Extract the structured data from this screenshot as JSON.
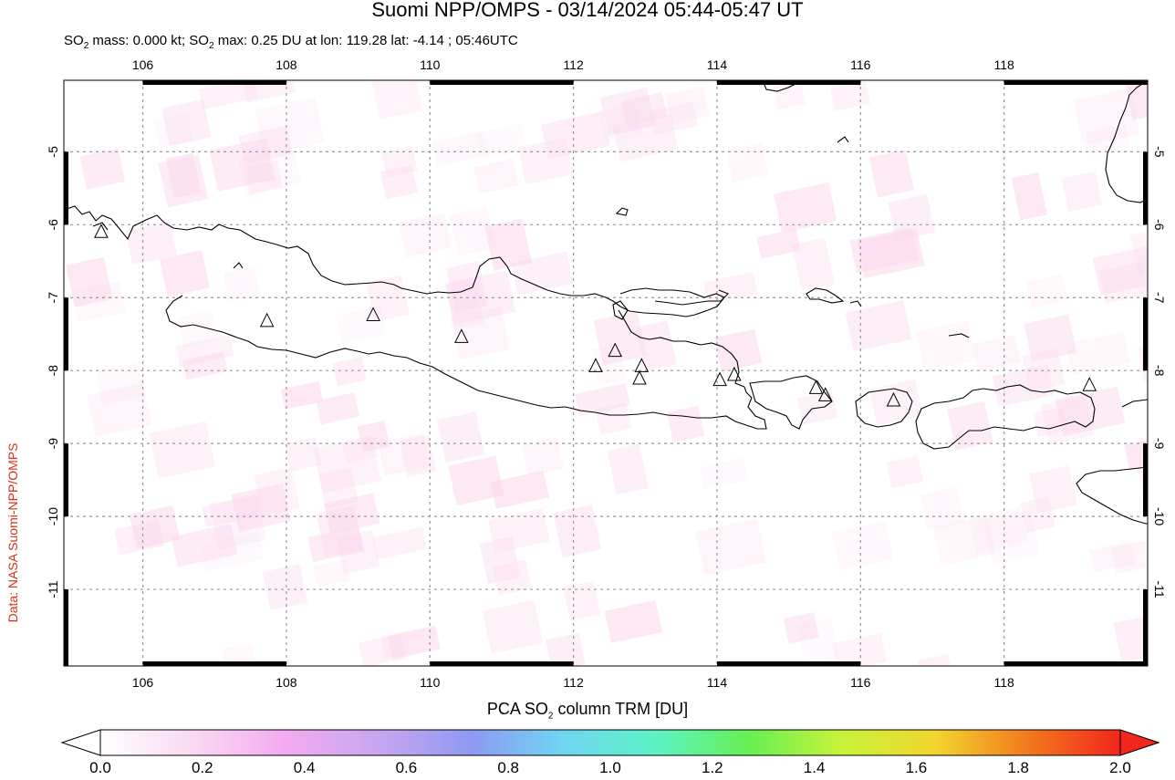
{
  "title": "Suomi NPP/OMPS - 03/14/2024 05:44-05:47 UT",
  "subtitle": {
    "mass_prefix": "SO",
    "mass_sub": "2",
    "mass_text": " mass: 0.000 kt; SO",
    "max_sub": "2",
    "max_text": " max: 0.25 DU at lon: 119.28 lat: -4.14 ; 05:46UTC"
  },
  "credit": "Data: NASA Suomi-NPP/OMPS",
  "map": {
    "lon_range": [
      104.9,
      120.0
    ],
    "lat_range": [
      -12.05,
      -4.02
    ],
    "lon_ticks": [
      "106",
      "108",
      "110",
      "112",
      "114",
      "116",
      "118"
    ],
    "lat_ticks": [
      "-5",
      "-6",
      "-7",
      "-8",
      "-9",
      "-10",
      "-11"
    ],
    "volcano_marker": "triangle-icon",
    "volcanoes": [
      {
        "lon": 105.42,
        "lat": -6.1
      },
      {
        "lon": 107.73,
        "lat": -7.32
      },
      {
        "lon": 109.21,
        "lat": -7.24
      },
      {
        "lon": 110.44,
        "lat": -7.54
      },
      {
        "lon": 112.31,
        "lat": -7.94
      },
      {
        "lon": 112.58,
        "lat": -7.73
      },
      {
        "lon": 112.95,
        "lat": -7.94
      },
      {
        "lon": 112.92,
        "lat": -8.11
      },
      {
        "lon": 114.04,
        "lat": -8.13
      },
      {
        "lon": 114.24,
        "lat": -8.06
      },
      {
        "lon": 115.38,
        "lat": -8.24
      },
      {
        "lon": 115.51,
        "lat": -8.34
      },
      {
        "lon": 116.46,
        "lat": -8.41
      },
      {
        "lon": 119.19,
        "lat": -8.2
      }
    ],
    "pixel_color": "#fbd8ec"
  },
  "colorbar": {
    "label_prefix": "PCA SO",
    "label_sub": "2",
    "label_suffix": " column TRM [DU]",
    "ticks": [
      "0.0",
      "0.2",
      "0.4",
      "0.6",
      "0.8",
      "1.0",
      "1.2",
      "1.4",
      "1.6",
      "1.8",
      "2.0"
    ],
    "range": [
      0.0,
      2.0
    ],
    "colors": [
      "#ffffff",
      "#f9d9f2",
      "#f3aaf0",
      "#c7a6f0",
      "#8f99f2",
      "#6fd6f2",
      "#5cf2c4",
      "#66f052",
      "#c8f23a",
      "#f2d52e",
      "#f27a1e",
      "#f2261c"
    ]
  }
}
